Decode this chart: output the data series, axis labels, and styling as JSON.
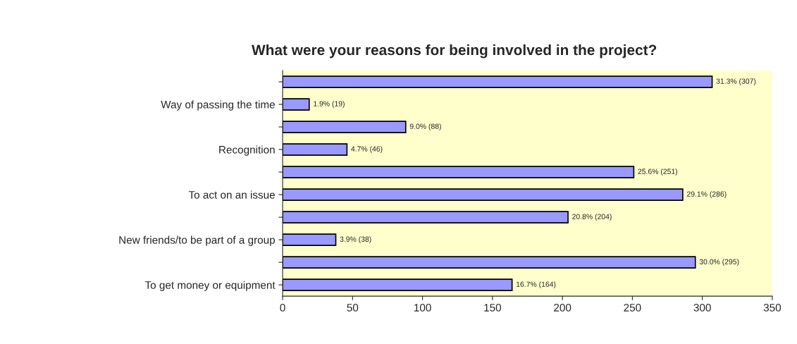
{
  "chart_data": {
    "type": "bar",
    "orientation": "horizontal",
    "title": "What were your reasons for being involved in the project?",
    "categories": [
      null,
      "Way of passing the time",
      null,
      "Recognition",
      null,
      "To act on an issue",
      null,
      "New friends/to be part of a group",
      null,
      "To get money or equipment"
    ],
    "values": [
      307,
      19,
      88,
      46,
      251,
      286,
      204,
      38,
      295,
      164
    ],
    "value_labels": [
      "31.3% (307)",
      "1.9% (19)",
      "9.0% (88)",
      "4.7% (46)",
      "25.6% (251)",
      "29.1% (286)",
      "20.8% (204)",
      "3.9% (38)",
      "30.0% (295)",
      "16.7% (164)"
    ],
    "color": "#9999ff",
    "xlim": [
      0,
      350
    ],
    "xticks": [
      0,
      50,
      100,
      150,
      200,
      250,
      300,
      350
    ],
    "grid": false,
    "legend": false
  }
}
